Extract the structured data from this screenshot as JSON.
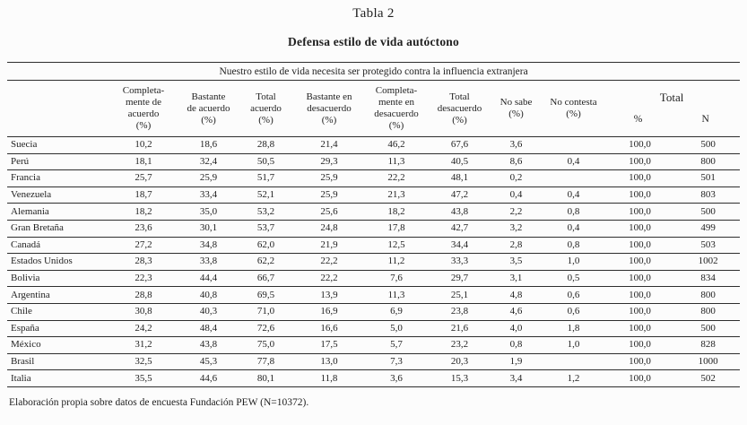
{
  "page": {
    "title": "Tabla 2",
    "subtitle": "Defensa estilo de vida autóctono",
    "footer": "Elaboración propia sobre datos de encuesta Fundación PEW (N=10372)."
  },
  "table": {
    "question": "Nuestro estilo de vida necesita ser protegido contra la influencia extranjera",
    "column_headers": [
      {
        "lines": [
          "Completa-",
          "mente de",
          "acuerdo",
          "(%)"
        ]
      },
      {
        "lines": [
          "Bastante",
          "de acuerdo",
          "(%)"
        ]
      },
      {
        "lines": [
          "Total",
          "acuerdo",
          "(%)"
        ]
      },
      {
        "lines": [
          "Bastante en",
          "desacuerdo",
          "(%)"
        ]
      },
      {
        "lines": [
          "Completa-",
          "mente en",
          "desacuerdo",
          "(%)"
        ]
      },
      {
        "lines": [
          "Total",
          "desacuerdo",
          "(%)"
        ]
      },
      {
        "lines": [
          "No sabe",
          "(%)"
        ]
      },
      {
        "lines": [
          "No contesta",
          "(%)"
        ]
      }
    ],
    "total_header": {
      "label": "Total",
      "sub_percent": "%",
      "sub_n": "N"
    },
    "rows": [
      {
        "country": "Suecia",
        "values": [
          "10,2",
          "18,6",
          "28,8",
          "21,4",
          "46,2",
          "67,6",
          "3,6",
          "",
          "100,0",
          "500"
        ]
      },
      {
        "country": "Perú",
        "values": [
          "18,1",
          "32,4",
          "50,5",
          "29,3",
          "11,3",
          "40,5",
          "8,6",
          "0,4",
          "100,0",
          "800"
        ]
      },
      {
        "country": "Francia",
        "values": [
          "25,7",
          "25,9",
          "51,7",
          "25,9",
          "22,2",
          "48,1",
          "0,2",
          "",
          "100,0",
          "501"
        ]
      },
      {
        "country": "Venezuela",
        "values": [
          "18,7",
          "33,4",
          "52,1",
          "25,9",
          "21,3",
          "47,2",
          "0,4",
          "0,4",
          "100,0",
          "803"
        ]
      },
      {
        "country": "Alemania",
        "values": [
          "18,2",
          "35,0",
          "53,2",
          "25,6",
          "18,2",
          "43,8",
          "2,2",
          "0,8",
          "100,0",
          "500"
        ]
      },
      {
        "country": "Gran Bretaña",
        "values": [
          "23,6",
          "30,1",
          "53,7",
          "24,8",
          "17,8",
          "42,7",
          "3,2",
          "0,4",
          "100,0",
          "499"
        ]
      },
      {
        "country": "Canadá",
        "values": [
          "27,2",
          "34,8",
          "62,0",
          "21,9",
          "12,5",
          "34,4",
          "2,8",
          "0,8",
          "100,0",
          "503"
        ]
      },
      {
        "country": "Estados Unidos",
        "values": [
          "28,3",
          "33,8",
          "62,2",
          "22,2",
          "11,2",
          "33,3",
          "3,5",
          "1,0",
          "100,0",
          "1002"
        ]
      },
      {
        "country": "Bolivia",
        "values": [
          "22,3",
          "44,4",
          "66,7",
          "22,2",
          "7,6",
          "29,7",
          "3,1",
          "0,5",
          "100,0",
          "834"
        ]
      },
      {
        "country": "Argentina",
        "values": [
          "28,8",
          "40,8",
          "69,5",
          "13,9",
          "11,3",
          "25,1",
          "4,8",
          "0,6",
          "100,0",
          "800"
        ]
      },
      {
        "country": "Chile",
        "values": [
          "30,8",
          "40,3",
          "71,0",
          "16,9",
          "6,9",
          "23,8",
          "4,6",
          "0,6",
          "100,0",
          "800"
        ]
      },
      {
        "country": "España",
        "values": [
          "24,2",
          "48,4",
          "72,6",
          "16,6",
          "5,0",
          "21,6",
          "4,0",
          "1,8",
          "100,0",
          "500"
        ]
      },
      {
        "country": "México",
        "values": [
          "31,2",
          "43,8",
          "75,0",
          "17,5",
          "5,7",
          "23,2",
          "0,8",
          "1,0",
          "100,0",
          "828"
        ]
      },
      {
        "country": "Brasil",
        "values": [
          "32,5",
          "45,3",
          "77,8",
          "13,0",
          "7,3",
          "20,3",
          "1,9",
          "",
          "100,0",
          "1000"
        ]
      },
      {
        "country": "Italia",
        "values": [
          "35,5",
          "44,6",
          "80,1",
          "11,8",
          "3,6",
          "15,3",
          "3,4",
          "1,2",
          "100,0",
          "502"
        ]
      }
    ]
  }
}
